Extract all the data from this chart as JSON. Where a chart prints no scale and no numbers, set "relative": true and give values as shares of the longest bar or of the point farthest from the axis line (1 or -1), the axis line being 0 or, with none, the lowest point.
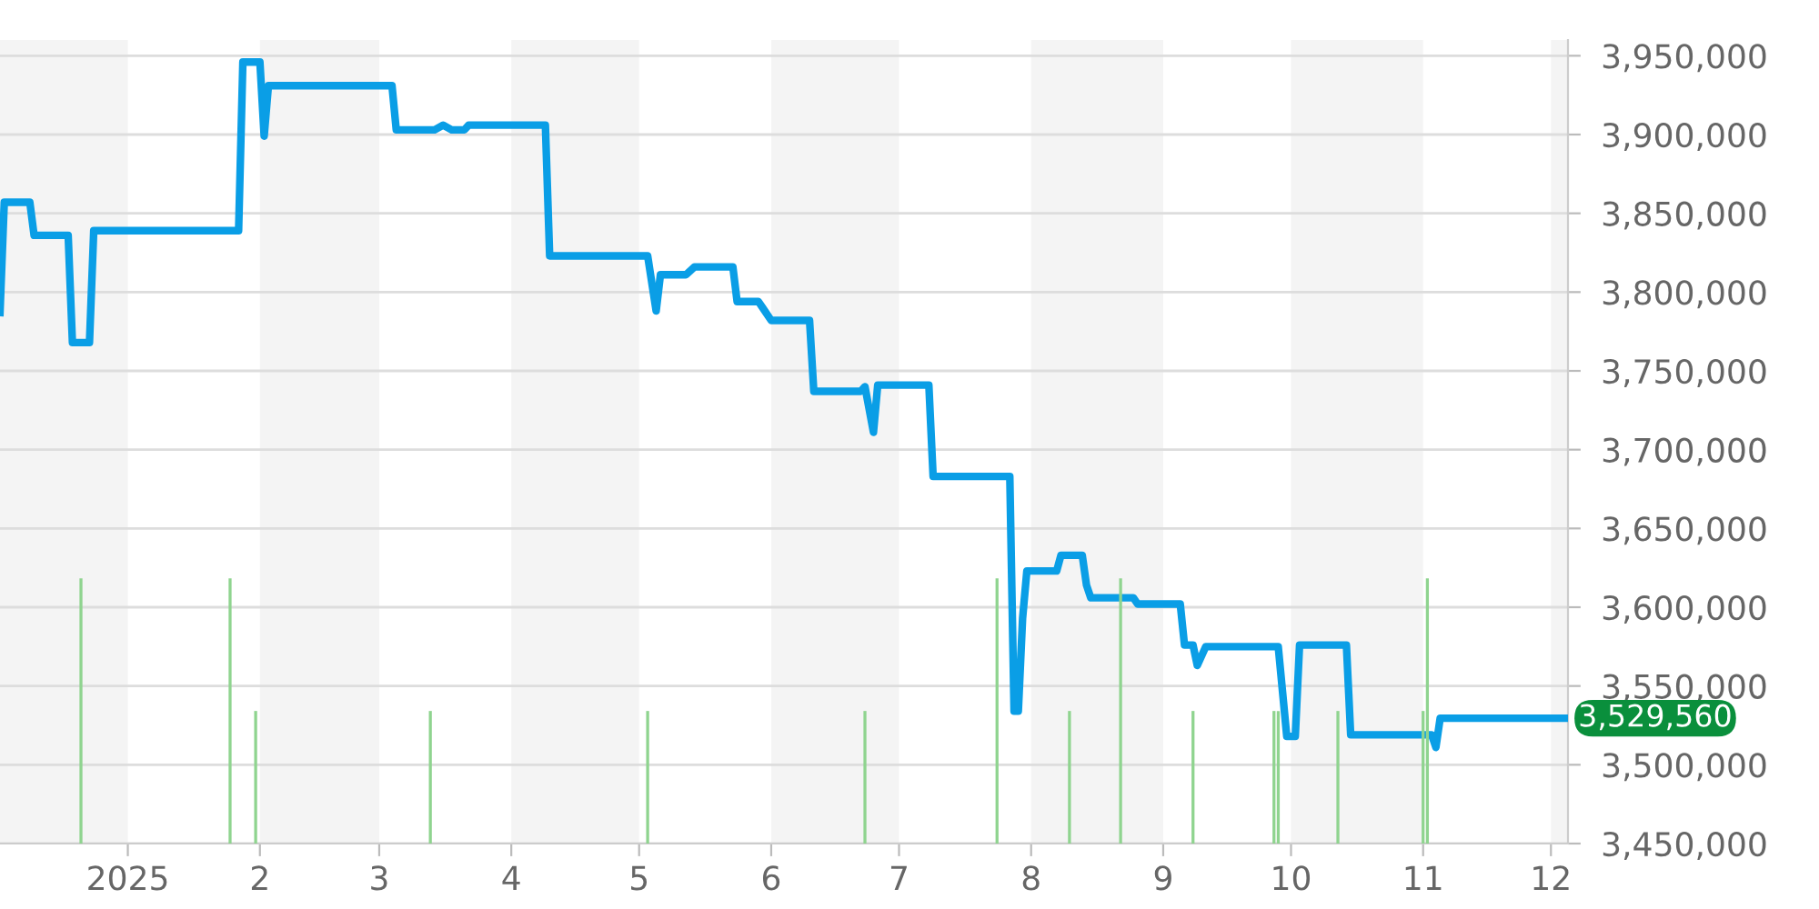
{
  "chart_data": [
    {
      "type": "line",
      "x": [
        "2024-12-02",
        "2024-12-03",
        "2024-12-09",
        "2024-12-10",
        "2024-12-18",
        "2024-12-19",
        "2024-12-23",
        "2024-12-24",
        "2025-01-27",
        "2025-01-28",
        "2025-02-01",
        "2025-02-02",
        "2025-02-03",
        "2025-03-04",
        "2025-03-05",
        "2025-03-14",
        "2025-03-16",
        "2025-03-18",
        "2025-03-21",
        "2025-03-22",
        "2025-04-09",
        "2025-04-10",
        "2025-05-03",
        "2025-05-05",
        "2025-05-06",
        "2025-05-12",
        "2025-05-14",
        "2025-05-23",
        "2025-05-24",
        "2025-05-29",
        "2025-05-30",
        "2025-06-01",
        "2025-06-10",
        "2025-06-11",
        "2025-06-22",
        "2025-06-23",
        "2025-06-25",
        "2025-06-26",
        "2025-07-08",
        "2025-07-09",
        "2025-07-27",
        "2025-07-28",
        "2025-07-29",
        "2025-07-30",
        "2025-07-31",
        "2025-08-07",
        "2025-08-08",
        "2025-08-13",
        "2025-08-14",
        "2025-08-15",
        "2025-08-25",
        "2025-08-26",
        "2025-09-05",
        "2025-09-06",
        "2025-09-08",
        "2025-09-09",
        "2025-09-11",
        "2025-09-28",
        "2025-09-30",
        "2025-10-02",
        "2025-10-03",
        "2025-10-14",
        "2025-10-15",
        "2025-11-03",
        "2025-11-04",
        "2025-11-05",
        "2025-12-05"
      ],
      "series": [
        {
          "color": "#0a9ee6",
          "values": [
            3787000,
            3857000,
            3857000,
            3836000,
            3836000,
            3768000,
            3768000,
            3839000,
            3839000,
            3946000,
            3946000,
            3899000,
            3931000,
            3931000,
            3903000,
            3903000,
            3906000,
            3903000,
            3903000,
            3906000,
            3906000,
            3823000,
            3823000,
            3788000,
            3811000,
            3811000,
            3816000,
            3816000,
            3794000,
            3794000,
            3790000,
            3782000,
            3782000,
            3737000,
            3737000,
            3740000,
            3711000,
            3741000,
            3741000,
            3683000,
            3683000,
            3534000,
            3534000,
            3593000,
            3623000,
            3623000,
            3633000,
            3633000,
            3614000,
            3606000,
            3606000,
            3602000,
            3602000,
            3576000,
            3576000,
            3563000,
            3575000,
            3575000,
            3518000,
            3518000,
            3576000,
            3576000,
            3519000,
            3519000,
            3511000,
            3529560,
            3529560
          ]
        }
      ],
      "xlim": [
        "2024-12-02",
        "2025-12-05"
      ],
      "xticks": [
        {
          "value": "2025-01-01",
          "label": "2025"
        },
        {
          "value": "2025-02-01",
          "label": "2"
        },
        {
          "value": "2025-03-01",
          "label": "3"
        },
        {
          "value": "2025-04-01",
          "label": "4"
        },
        {
          "value": "2025-05-01",
          "label": "5"
        },
        {
          "value": "2025-06-01",
          "label": "6"
        },
        {
          "value": "2025-07-01",
          "label": "7"
        },
        {
          "value": "2025-08-01",
          "label": "8"
        },
        {
          "value": "2025-09-01",
          "label": "9"
        },
        {
          "value": "2025-10-01",
          "label": "10"
        },
        {
          "value": "2025-11-01",
          "label": "11"
        },
        {
          "value": "2025-12-01",
          "label": "12"
        }
      ],
      "ylim": [
        3450000,
        3960000
      ],
      "yticks": [
        {
          "value": 3450000,
          "label": "3,450,000"
        },
        {
          "value": 3500000,
          "label": "3,500,000"
        },
        {
          "value": 3550000,
          "label": "3,550,000"
        },
        {
          "value": 3600000,
          "label": "3,600,000"
        },
        {
          "value": 3650000,
          "label": "3,650,000"
        },
        {
          "value": 3700000,
          "label": "3,700,000"
        },
        {
          "value": 3750000,
          "label": "3,750,000"
        },
        {
          "value": 3800000,
          "label": "3,800,000"
        },
        {
          "value": 3850000,
          "label": "3,850,000"
        },
        {
          "value": 3900000,
          "label": "3,900,000"
        },
        {
          "value": 3950000,
          "label": "3,950,000"
        }
      ],
      "grid": "y",
      "bands": [
        {
          "axis": "x",
          "from": "2024-12-02",
          "to": "2025-01-01",
          "color": "#f4f4f4"
        },
        {
          "axis": "x",
          "from": "2025-02-01",
          "to": "2025-03-01",
          "color": "#f4f4f4"
        },
        {
          "axis": "x",
          "from": "2025-04-01",
          "to": "2025-05-01",
          "color": "#f4f4f4"
        },
        {
          "axis": "x",
          "from": "2025-06-01",
          "to": "2025-07-01",
          "color": "#f4f4f4"
        },
        {
          "axis": "x",
          "from": "2025-08-01",
          "to": "2025-09-01",
          "color": "#f4f4f4"
        },
        {
          "axis": "x",
          "from": "2025-10-01",
          "to": "2025-11-01",
          "color": "#f4f4f4"
        },
        {
          "axis": "x",
          "from": "2025-12-01",
          "to": "2025-12-05",
          "color": "#f4f4f4"
        }
      ],
      "annotations": [
        {
          "text": "3,529,560",
          "x": "2025-12-05",
          "y": 3529560
        }
      ]
    },
    {
      "type": "bar",
      "relative": true,
      "tick_labels": false,
      "x": [
        "2024-12-21",
        "2025-01-25",
        "2025-01-31",
        "2025-03-13",
        "2025-05-03",
        "2025-06-23",
        "2025-07-24",
        "2025-08-10",
        "2025-08-22",
        "2025-09-08",
        "2025-09-27",
        "2025-09-28",
        "2025-10-12",
        "2025-11-01",
        "2025-11-02"
      ],
      "values": [
        1,
        1,
        0.5,
        0.5,
        0.5,
        0.5,
        1,
        0.5,
        1,
        0.5,
        0.5,
        0.5,
        0.5,
        0.5,
        1
      ],
      "color": "#8fd48f",
      "xlim": [
        "2024-12-02",
        "2025-12-05"
      ]
    }
  ]
}
